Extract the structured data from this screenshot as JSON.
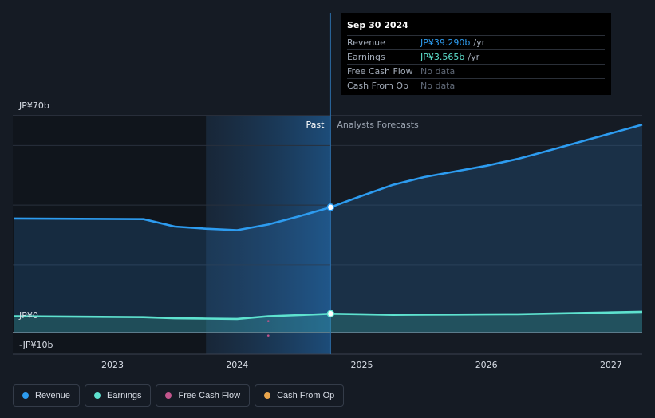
{
  "colors": {
    "revenue": "#2d9cf0",
    "earnings": "#5ee2cf",
    "free_cash_flow": "#c2558c",
    "cash_from_op": "#e9a54c"
  },
  "tooltip": {
    "date": "Sep 30 2024",
    "rows": [
      {
        "label": "Revenue",
        "value": "JP¥39.290b",
        "unit": "/yr"
      },
      {
        "label": "Earnings",
        "value": "JP¥3.565b",
        "unit": "/yr"
      },
      {
        "label": "Free Cash Flow",
        "value": "No data"
      },
      {
        "label": "Cash From Op",
        "value": "No data"
      }
    ]
  },
  "legend": [
    {
      "label": "Revenue",
      "key": "revenue"
    },
    {
      "label": "Earnings",
      "key": "earnings"
    },
    {
      "label": "Free Cash Flow",
      "key": "free_cash_flow"
    },
    {
      "label": "Cash From Op",
      "key": "cash_from_op"
    }
  ],
  "chart_data": {
    "type": "area",
    "title": "",
    "y_unit": "JP¥ billions",
    "ylim": [
      -10,
      70
    ],
    "y_tick_labels": [
      {
        "value": 70,
        "label": "JP¥70b"
      },
      {
        "value": 0,
        "label": "JP¥0"
      },
      {
        "value": -10,
        "label": "-JP¥10b"
      }
    ],
    "xlim": [
      2022.2,
      2027.25
    ],
    "x_tick_labels": [
      {
        "value": 2023,
        "label": "2023"
      },
      {
        "value": 2024,
        "label": "2024"
      },
      {
        "value": 2025,
        "label": "2025"
      },
      {
        "value": 2026,
        "label": "2026"
      },
      {
        "value": 2027,
        "label": "2027"
      }
    ],
    "past_label": "Past",
    "forecast_label": "Analysts Forecasts",
    "divider_x": 2024.75,
    "past_shade_start": 2023.75,
    "series": [
      {
        "name": "Revenue",
        "key": "revenue",
        "x": [
          2022.21,
          2023.25,
          2023.5,
          2023.75,
          2024.0,
          2024.25,
          2024.5,
          2024.75,
          2025.0,
          2025.25,
          2025.5,
          2025.75,
          2026.0,
          2026.25,
          2026.5,
          2026.75,
          2027.0,
          2027.25
        ],
        "values": [
          35.5,
          35.3,
          32.8,
          32.1,
          31.6,
          33.5,
          36.3,
          39.29,
          43.1,
          46.8,
          49.4,
          51.3,
          53.2,
          55.5,
          58.3,
          61.2,
          64.1,
          67.0
        ]
      },
      {
        "name": "Earnings",
        "key": "earnings",
        "x": [
          2022.21,
          2023.25,
          2023.5,
          2023.75,
          2024.0,
          2024.25,
          2024.5,
          2024.75,
          2025.0,
          2025.25,
          2025.5,
          2025.75,
          2026.0,
          2026.25,
          2026.5,
          2026.75,
          2027.0,
          2027.25
        ],
        "values": [
          2.7,
          2.4,
          2.0,
          1.9,
          1.8,
          2.7,
          3.1,
          3.565,
          3.4,
          3.2,
          3.25,
          3.3,
          3.35,
          3.4,
          3.6,
          3.8,
          4.0,
          4.2
        ]
      }
    ]
  }
}
